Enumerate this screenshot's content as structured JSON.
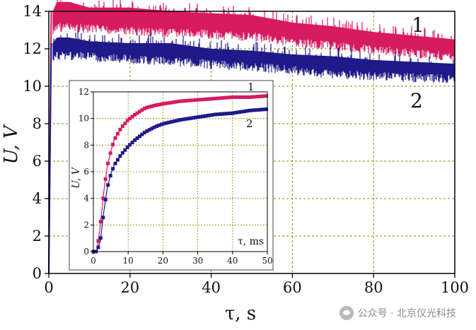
{
  "chart_data": [
    {
      "type": "line",
      "title": "",
      "xlabel": "τ, s",
      "ylabel": "U, V",
      "xlim": [
        0,
        100
      ],
      "ylim": [
        0,
        14
      ],
      "xticks": [
        "0",
        "20",
        "40",
        "60",
        "80",
        "100"
      ],
      "yticks": [
        "0",
        "2",
        "4",
        "6",
        "8",
        "10",
        "12",
        "14"
      ],
      "grid": true,
      "series": [
        {
          "name": "1",
          "color": "#d81b60",
          "x": [
            0,
            0.5,
            1,
            2,
            5,
            10,
            20,
            30,
            40,
            50,
            60,
            70,
            80,
            90,
            100
          ],
          "y_low": [
            0,
            6,
            13,
            13.4,
            13.4,
            13.3,
            13.2,
            13.1,
            13.0,
            12.9,
            12.6,
            12.4,
            12.2,
            12.0,
            11.8
          ],
          "y_high": [
            0,
            7,
            14.0,
            14.5,
            14.5,
            14.2,
            14.2,
            14.0,
            13.9,
            13.8,
            13.4,
            13.2,
            12.9,
            12.7,
            12.5
          ]
        },
        {
          "name": "2",
          "color": "#1f1a8a",
          "x": [
            0,
            0.5,
            1,
            2,
            5,
            10,
            20,
            30,
            40,
            50,
            60,
            70,
            80,
            90,
            100
          ],
          "y_low": [
            0,
            5,
            11.6,
            11.9,
            11.9,
            11.8,
            11.7,
            11.6,
            11.4,
            11.3,
            11.1,
            10.9,
            10.8,
            10.7,
            10.6
          ],
          "y_high": [
            0,
            6,
            12.3,
            12.6,
            12.6,
            12.4,
            12.3,
            12.3,
            12.0,
            11.9,
            11.7,
            11.6,
            11.4,
            11.3,
            11.2
          ]
        }
      ],
      "series_labels": [
        "1",
        "2"
      ]
    },
    {
      "type": "line",
      "title": "inset",
      "xlabel": "τ, ms",
      "ylabel": "U, V",
      "xlim": [
        0,
        50
      ],
      "ylim": [
        0,
        12
      ],
      "xticks": [
        "0",
        "10",
        "20",
        "30",
        "40",
        "50"
      ],
      "yticks": [
        "0",
        "2",
        "4",
        "6",
        "8",
        "10",
        "12"
      ],
      "grid": true,
      "series": [
        {
          "name": "1",
          "color": "#d81b60",
          "x": [
            0,
            1,
            2,
            3,
            4,
            5,
            6,
            8,
            10,
            12,
            15,
            18,
            20,
            25,
            30,
            35,
            40,
            45,
            50
          ],
          "y": [
            0,
            0,
            2,
            4.5,
            6.4,
            7.5,
            8.4,
            9.3,
            9.9,
            10.3,
            10.8,
            11.0,
            11.1,
            11.3,
            11.4,
            11.5,
            11.6,
            11.6,
            11.7
          ]
        },
        {
          "name": "2",
          "color": "#1f1a8a",
          "x": [
            0,
            1,
            2,
            3,
            4,
            5,
            6,
            8,
            10,
            12,
            15,
            18,
            20,
            25,
            30,
            35,
            40,
            45,
            50
          ],
          "y": [
            0,
            0,
            0.8,
            3.0,
            4.8,
            5.8,
            6.5,
            7.3,
            7.9,
            8.4,
            9.0,
            9.4,
            9.6,
            9.9,
            10.1,
            10.3,
            10.4,
            10.6,
            10.7
          ]
        }
      ],
      "series_labels": [
        "1",
        "2"
      ]
    }
  ],
  "watermark": "公众号 · 北京仪光科技"
}
